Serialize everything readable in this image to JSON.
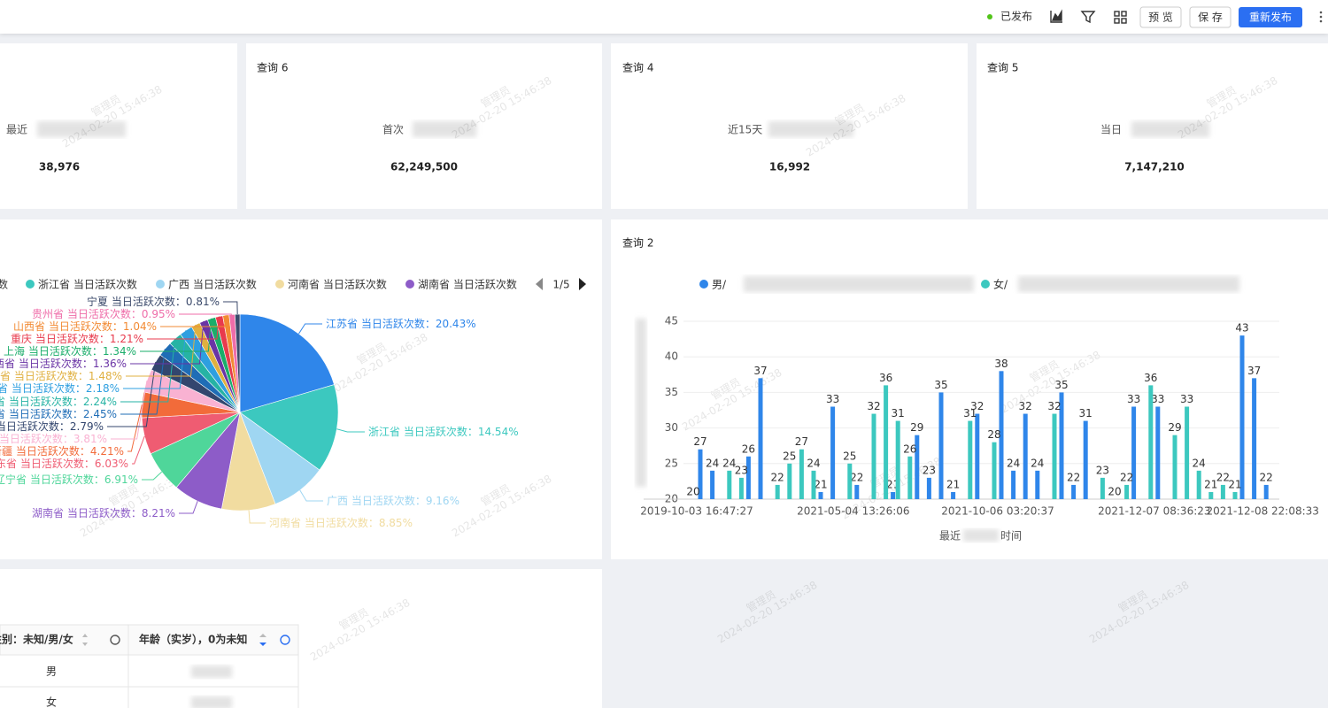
{
  "toolbar": {
    "status": "已发布",
    "buttons": [
      "预 览",
      "保 存",
      "重新发布"
    ]
  },
  "watermark": {
    "user": "管理员",
    "time": "2024-02-20 15:46:38"
  },
  "cards": [
    {
      "label": "最近",
      "value": "38,976"
    },
    {
      "title": "查询 6",
      "label": "首次",
      "value": "62,249,500"
    },
    {
      "title": "查询 4",
      "label": "近15天",
      "value": "16,992"
    },
    {
      "title": "查询 5",
      "label": "当日",
      "value": "7,147,210"
    }
  ],
  "chart_data": [
    {
      "type": "pie",
      "categories": [
        "江苏省 当日活跃次数",
        "浙江省 当日活跃次数",
        "广西 当日活跃次数",
        "河南省 当日活跃次数",
        "湖南省 当日活跃次数",
        "辽宁省 当日活跃次数",
        "东省 当日活跃次数",
        "新疆 当日活跃次数",
        "省 当日活跃次数",
        "京 当日活跃次数",
        "省 当日活跃次数",
        "省 当日活跃次数",
        "省 当日活跃次数",
        "川省 当日活跃次数",
        "西省 当日活跃次数",
        "上海 当日活跃次数",
        "重庆 当日活跃次数",
        "山西省 当日活跃次数",
        "贵州省 当日活跃次数",
        "宁夏 当日活跃次数"
      ],
      "values": [
        20.43,
        14.54,
        9.16,
        8.85,
        8.21,
        6.91,
        6.03,
        4.21,
        3.81,
        2.79,
        2.45,
        2.24,
        2.18,
        1.48,
        1.36,
        1.34,
        1.21,
        1.04,
        0.95,
        0.81
      ],
      "value_labels": [
        "20.43%",
        "14.54%",
        "9.16%",
        "8.85%",
        "8.21%",
        "6.91%",
        "6.03%",
        "4.21%",
        "3.81%",
        "2.79%",
        "2.45%",
        "2.24%",
        "2.18%",
        "1.48%",
        "1.36%",
        "1.34%",
        "1.21%",
        "1.04%",
        "0.95%",
        "0.81%"
      ],
      "label_separator": "：",
      "colors": [
        "#2f86ea",
        "#3cc8bf",
        "#9fd6f2",
        "#f1dca0",
        "#8d5cc8",
        "#4fd69a",
        "#ef5c72",
        "#f26b3a",
        "#f9b2d2",
        "#33466e",
        "#1f6db6",
        "#26b3a4",
        "#2e9fe0",
        "#e0b040",
        "#6a34a5",
        "#1aad6a",
        "#e83a4d",
        "#f28a33",
        "#ef6da9",
        "#3b4a6b"
      ],
      "legend_page": "1/5"
    },
    {
      "type": "bar",
      "title": "查询 2",
      "categories": [
        "2019-10-03 16:47:27",
        null,
        null,
        null,
        null,
        null,
        null,
        null,
        null,
        null,
        null,
        null,
        null,
        "2021-05-04 13:26:06",
        null,
        null,
        null,
        null,
        null,
        null,
        null,
        null,
        null,
        null,
        null,
        "2021-10-06 03:20:37",
        null,
        null,
        null,
        null,
        null,
        null,
        null,
        null,
        null,
        null,
        null,
        null,
        "2021-12-07 08:36:23",
        null,
        null,
        null,
        null,
        null,
        null,
        null,
        null,
        "2021-12-08 22:08:33"
      ],
      "series": [
        {
          "name": "男/",
          "color": "#2f86ea",
          "values": [
            27,
            24,
            null,
            null,
            26,
            37,
            null,
            null,
            null,
            null,
            21,
            33,
            null,
            22,
            null,
            null,
            21,
            null,
            29,
            23,
            35,
            21,
            null,
            32,
            null,
            38,
            24,
            32,
            24,
            null,
            35,
            22,
            31,
            null,
            null,
            null,
            33,
            null,
            33,
            null,
            null,
            null,
            null,
            null,
            null,
            43,
            37,
            22
          ]
        },
        {
          "name": "女/",
          "color": "#3cc8bf",
          "values": [
            20,
            null,
            null,
            24,
            23,
            null,
            null,
            22,
            25,
            27,
            24,
            null,
            null,
            25,
            null,
            32,
            36,
            31,
            26,
            null,
            null,
            null,
            null,
            31,
            null,
            28,
            null,
            null,
            null,
            null,
            32,
            null,
            null,
            null,
            23,
            20,
            22,
            null,
            36,
            null,
            29,
            33,
            24,
            21,
            22,
            21,
            null,
            null
          ]
        }
      ],
      "ylim": [
        20,
        46
      ],
      "yticks": [
        20,
        25,
        30,
        35,
        40,
        45
      ],
      "grid": true,
      "xlabel_parts": [
        "最近",
        "时间"
      ]
    }
  ],
  "table": {
    "header": [
      "性别：未知/男/女",
      "年龄（实岁），0为未知"
    ],
    "rows": [
      [
        "男"
      ],
      [
        "女"
      ]
    ]
  }
}
